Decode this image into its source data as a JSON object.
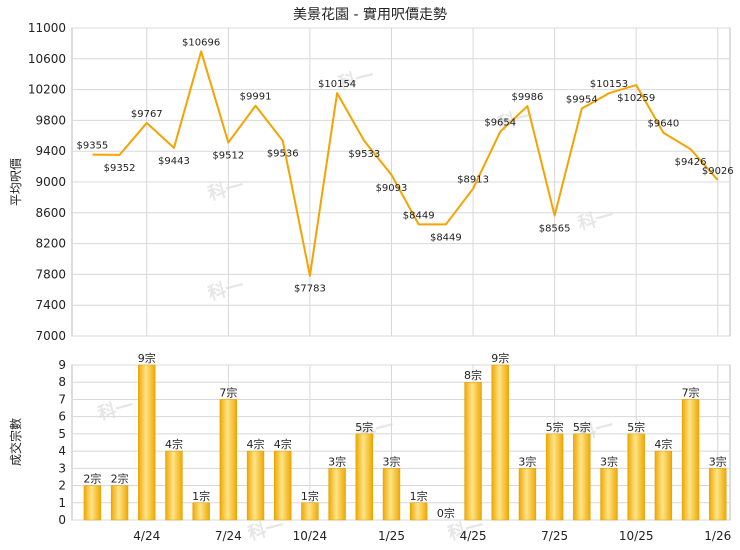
{
  "title": "美景花園 - 實用呎價走勢",
  "watermark": "科一",
  "colors": {
    "line": "#f5a300",
    "bar_light": "#fde58a",
    "bar_dark": "#f0a800",
    "grid": "#d8d8d8"
  },
  "chart_data": [
    {
      "type": "line",
      "ylabel": "平均呎價",
      "ylim": [
        7000,
        11000
      ],
      "yticks": [
        7000,
        7400,
        7800,
        8200,
        8600,
        9000,
        9400,
        9800,
        10200,
        10600,
        11000
      ],
      "grid": true,
      "values": [
        9355,
        9352,
        9767,
        9443,
        null,
        9512,
        9991,
        9536,
        7783,
        10154,
        9533,
        9093,
        8449,
        8449,
        8913,
        9654,
        9986,
        8565,
        9954,
        10153,
        10259,
        9640,
        9426,
        9026
      ],
      "labels": [
        "$9355",
        "$9352",
        "$9767",
        "$9443",
        "",
        "$9512",
        "$9991",
        "$9536",
        "$7783",
        "$10154",
        "$9533",
        "$9093",
        "$8449",
        "$8449",
        "$8913",
        "$9654",
        "$9986",
        "$8565",
        "$9954",
        "$10153",
        "$10259",
        "$9640",
        "$9426",
        "$9026"
      ],
      "line_path_values": [
        9355,
        9352,
        9767,
        9443,
        10696,
        9512,
        9991,
        9536,
        7783,
        10154,
        9533,
        9093,
        8449,
        8449,
        8913,
        9654,
        9986,
        8565,
        9954,
        10153,
        10259,
        9640,
        9426,
        9026
      ],
      "peak_label": "$10696"
    },
    {
      "type": "bar",
      "ylabel": "成交宗數",
      "ylim": [
        0,
        9
      ],
      "yticks": [
        0,
        1,
        2,
        3,
        4,
        5,
        6,
        7,
        8,
        9
      ],
      "grid": true,
      "values": [
        2,
        2,
        9,
        4,
        1,
        7,
        4,
        4,
        1,
        3,
        5,
        3,
        1,
        0,
        8,
        9,
        3,
        5,
        5,
        3,
        5,
        4,
        7,
        3
      ],
      "labels": [
        "2宗",
        "2宗",
        "9宗",
        "4宗",
        "1宗",
        "7宗",
        "4宗",
        "4宗",
        "1宗",
        "3宗",
        "5宗",
        "3宗",
        "1宗",
        "0宗",
        "8宗",
        "9宗",
        "3宗",
        "5宗",
        "5宗",
        "3宗",
        "5宗",
        "4宗",
        "7宗",
        "3宗"
      ],
      "xticks": [
        {
          "index": 2,
          "label": "4/24"
        },
        {
          "index": 5,
          "label": "7/24"
        },
        {
          "index": 8,
          "label": "10/24"
        },
        {
          "index": 11,
          "label": "1/25"
        },
        {
          "index": 14,
          "label": "4/25"
        },
        {
          "index": 17,
          "label": "7/25"
        },
        {
          "index": 20,
          "label": "10/25"
        },
        {
          "index": 23,
          "label": "1/26"
        }
      ]
    }
  ]
}
